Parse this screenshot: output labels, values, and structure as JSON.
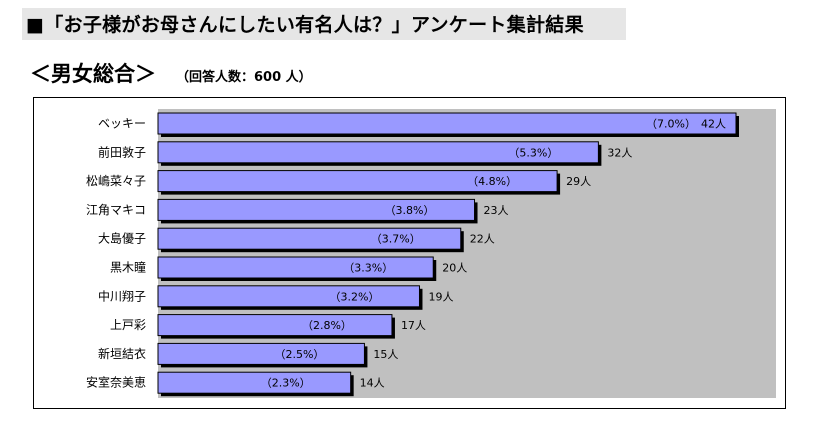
{
  "header": {
    "title": "■「お子様がお母さんにしたい有名人は？」アンケート集計結果",
    "subheading": "＜男女総合＞",
    "respondents": "（回答人数：600 人）"
  },
  "colors": {
    "bar": "#9999ff",
    "bar_shadow": "#000000",
    "plot_bg": "#c0c0c0",
    "title_band": "#e6e6e6"
  },
  "chart_data": {
    "type": "bar",
    "orientation": "horizontal",
    "title": "",
    "xlabel": "",
    "ylabel": "",
    "xlim": [
      0,
      42
    ],
    "grid": false,
    "legend": "none",
    "categories": [
      "ベッキー",
      "前田敦子",
      "松嶋菜々子",
      "江角マキコ",
      "大島優子",
      "黒木瞳",
      "中川翔子",
      "上戸彩",
      "新垣結衣",
      "安室奈美恵"
    ],
    "values": [
      42,
      32,
      29,
      23,
      22,
      20,
      19,
      17,
      15,
      14
    ],
    "value_labels": [
      "42人",
      "32人",
      "29人",
      "23人",
      "22人",
      "20人",
      "19人",
      "17人",
      "15人",
      "14人"
    ],
    "percent_labels": [
      "（7.0%）",
      "（5.3%）",
      "（4.8%）",
      "（3.8%）",
      "（3.7%）",
      "（3.3%）",
      "（3.2%）",
      "（2.8%）",
      "（2.5%）",
      "（2.3%）"
    ]
  }
}
